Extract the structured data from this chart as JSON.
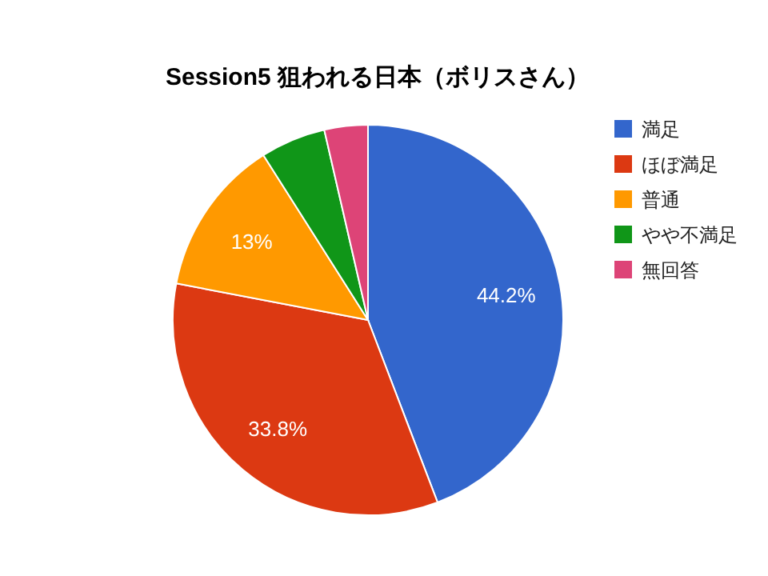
{
  "chart_data": {
    "type": "pie",
    "title": "Session5 狙われる日本（ボリスさん）",
    "categories": [
      "満足",
      "ほぼ満足",
      "普通",
      "やや不満足",
      "無回答"
    ],
    "values": [
      44.2,
      33.8,
      13,
      5.4,
      3.6
    ],
    "colors": [
      "#3366cc",
      "#dc3912",
      "#ff9900",
      "#109618",
      "#dd4477"
    ],
    "value_labels": [
      "44.2%",
      "33.8%",
      "13%",
      null,
      null
    ],
    "legend": "right"
  }
}
